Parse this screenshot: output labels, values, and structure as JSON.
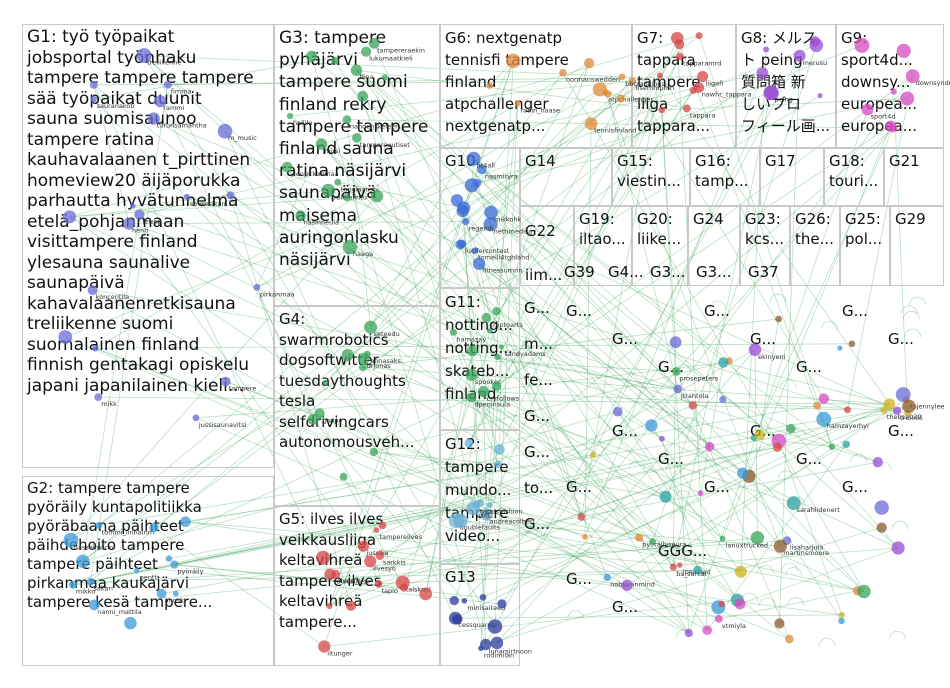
{
  "groups": [
    {
      "id": "G1",
      "lines": [
        "G1: työ työpaikat",
        "jobsportal työnhaku",
        "tampere tampere tampere",
        "sää työpaikat duunit",
        "sauna suomisaunoo",
        "tampere ratina",
        "kauhavalaanen t_pirttinen",
        "homeview20 äijäporukka",
        "parhautta hyvätunnelma",
        "etelä_pohjanmaan",
        "visittampere finland",
        "ylesauna saunalive",
        "saunapäivä",
        "kahavalaanenretkisauna",
        "treliikenne suomi",
        "suomalainen finland",
        "finnish gentakagi opiskelu",
        "japani japanilainen kieli..."
      ]
    },
    {
      "id": "G2",
      "lines": [
        "G2: tampere tampere",
        "pyöräily kuntapolitiikka",
        "pyöräbaana päihteet",
        "päihdehoito tampere",
        "tampere päihteet",
        "pirkanmaa kaukajärvi",
        "tampere kesä tampere..."
      ]
    },
    {
      "id": "G3",
      "lines": [
        "G3: tampere",
        "pyhäjärvi",
        "tampere suomi",
        "finland rekry",
        "tampere tampere",
        "finland sauna",
        "ratina näsijärvi",
        "saunapäivä",
        "maisema",
        "auringonlasku",
        "näsijärvi"
      ]
    },
    {
      "id": "G4",
      "lines": [
        "G4:",
        "swarmrobotics",
        "dogsoftwitter",
        "tuesdaythoughts",
        "tesla",
        "selfdrivingcars",
        "autonomousveh..."
      ]
    },
    {
      "id": "G5",
      "lines": [
        "G5: ilves ilves",
        "veikkausliiga",
        "keltavihreä",
        "tampere ilves",
        "keltavihreä",
        "tampere..."
      ]
    },
    {
      "id": "G6",
      "lines": [
        "G6: nextgenatp",
        "tennisfi tampere",
        "finland",
        "atpchallenger",
        "nextgenatp..."
      ]
    },
    {
      "id": "G7",
      "lines": [
        "G7:",
        "tappara",
        "tampere",
        "liiga",
        "tappara..."
      ]
    },
    {
      "id": "G8",
      "lines": [
        "G8: メルス",
        "ト peing",
        "質問箱 新",
        "しいプロ",
        "フィール画..."
      ]
    },
    {
      "id": "G9",
      "lines": [
        "G9:",
        "sport4d...",
        "downsy...",
        "europea...",
        "europea..."
      ]
    },
    {
      "id": "G10",
      "lines": [
        "G10"
      ]
    },
    {
      "id": "G11",
      "lines": [
        "G11:",
        "notting...",
        "notting...",
        "skateb...",
        "finland"
      ]
    },
    {
      "id": "G12",
      "lines": [
        "G12:",
        "tampere",
        "mundo...",
        "tampere",
        "video..."
      ]
    },
    {
      "id": "G13",
      "lines": [
        "G13"
      ]
    },
    {
      "id": "G14",
      "lines": [
        "G14"
      ]
    },
    {
      "id": "G15",
      "lines": [
        "G15:",
        "viestin..."
      ]
    },
    {
      "id": "G16",
      "lines": [
        "G16:",
        "tamp..."
      ]
    },
    {
      "id": "G17",
      "lines": [
        "G17"
      ]
    },
    {
      "id": "G18",
      "lines": [
        "G18:",
        "touri..."
      ]
    },
    {
      "id": "G21",
      "lines": [
        "G21"
      ]
    },
    {
      "id": "G22",
      "lines": [
        "G22",
        "iim..."
      ]
    },
    {
      "id": "G19",
      "lines": [
        "G19:",
        "iltao..."
      ]
    },
    {
      "id": "G20",
      "lines": [
        "G20:",
        "liike..."
      ]
    },
    {
      "id": "G24",
      "lines": [
        "G24"
      ]
    },
    {
      "id": "G23",
      "lines": [
        "G23:",
        "kcs..."
      ]
    },
    {
      "id": "G26",
      "lines": [
        "G26:",
        "the..."
      ]
    },
    {
      "id": "G25",
      "lines": [
        "G25:",
        "pol..."
      ]
    },
    {
      "id": "G29",
      "lines": [
        "G29"
      ]
    },
    {
      "id": "G39",
      "lines": [
        "G39"
      ]
    },
    {
      "id": "G4x",
      "lines": [
        "G4..."
      ]
    },
    {
      "id": "G3x",
      "lines": [
        "G3..."
      ]
    },
    {
      "id": "G3y",
      "lines": [
        "G3..."
      ]
    },
    {
      "id": "G37",
      "lines": [
        "G37"
      ]
    },
    {
      "id": "Gsmall",
      "lines": [
        "G...",
        "G...",
        "G...",
        "G...",
        "G...",
        "G...",
        "G...",
        "G...",
        "G...",
        "G...",
        "G...",
        "G...",
        "G...",
        "G...",
        "G...",
        "G...",
        "G...",
        "G...",
        "GGG..."
      ]
    },
    {
      "id": "G11x",
      "lines": [
        "G...",
        "m...",
        "fe...",
        "G...",
        "G...",
        "to...",
        "G..."
      ]
    }
  ],
  "node_labels": {
    "G1": [
      "m_music",
      "rammi",
      "henri",
      "fimma",
      "treliikenne",
      "sovkesikuni",
      "sauranakoti",
      "koncentila",
      "lewnp",
      "turunsamantha",
      "tampere",
      "jussisaunavitsi",
      "mikk",
      "pirkanmaa"
    ],
    "G2": [
      "hasselmanni",
      "mikko",
      "tommi_linnainm",
      "pentti",
      "sakari",
      "pyöräily",
      "nanni_mattila",
      "annsk"
    ],
    "G3": [
      "tampereraekin",
      "ylenpirkanmaa",
      "haaga",
      "hallila",
      "lukumaatkieli",
      "näsinneula",
      "tiina",
      "tunglaanshi",
      "mirsi",
      "nanqenskeleen",
      "trelemlintu",
      "tampereuutiset"
    ],
    "G4": [
      "gsppe",
      "annasaks",
      "seteedu",
      "drjonas"
    ],
    "G5": [
      "ilvesfi",
      "ilvesyo",
      "tampereilves",
      "talskonl",
      "jussika",
      "vaulun_lehr",
      "sarkkis",
      "tapio",
      "iltunger"
    ],
    "G6": [
      "normanswedden",
      "robin_haase",
      "hsemmpmn",
      "atpchallenger",
      "bbcrankings",
      "tennisfinland"
    ],
    "G7": [
      "tappara",
      "tapparamrd",
      "nawhc_tappara",
      "liigafi"
    ],
    "G8": [
      "peing",
      "merusu"
    ],
    "G9": [
      "sport4d",
      "downsyndrome"
    ],
    "G10": [
      "tomelli4tghlahd",
      "nasmiryra",
      "nettimedisa",
      "fit4all",
      "mikkohk",
      "regendi",
      "lucifercontest",
      "fitnessumrin"
    ],
    "G11": [
      "cryptoarts",
      "cryfollows",
      "spooker",
      "hamazay",
      "dpeninsula",
      "sandyadams"
    ],
    "G12": [
      "andreacolbert",
      "doublefaults",
      "caprisfashion",
      "uscl"
    ],
    "G13": [
      "minisaiteed",
      "cessquares",
      "lunarsirtnoon",
      "rodimilan"
    ],
    "G14": [
      "hjallisharkimo",
      "hesinet"
    ],
    "Gsmall": [
      "lisaharjula",
      "nobuvanmind",
      "prosepeters",
      "bs_sarkar",
      "itsjennylee",
      "ekinyeni",
      "vtmiyla",
      "thebs2020",
      "sarahlidenert",
      "martinsmoore",
      "jtrahtola",
      "hamzayerhyi",
      "lanuxtrucked",
      "jpeasant",
      "pyorailyseura",
      "tribinki"
    ]
  }
}
